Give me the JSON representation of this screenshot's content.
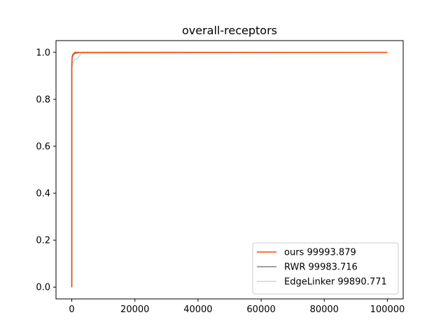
{
  "chart_data": {
    "type": "line",
    "title": "overall-receptors",
    "xlabel": "",
    "ylabel": "",
    "xlim": [
      -5000,
      105000
    ],
    "ylim": [
      -0.05,
      1.05
    ],
    "xticks": [
      0,
      20000,
      40000,
      60000,
      80000,
      100000
    ],
    "xtick_labels": [
      "0",
      "20000",
      "40000",
      "60000",
      "80000",
      "100000"
    ],
    "yticks": [
      0.0,
      0.2,
      0.4,
      0.6,
      0.8,
      1.0
    ],
    "ytick_labels": [
      "0.0",
      "0.2",
      "0.4",
      "0.6",
      "0.8",
      "1.0"
    ],
    "grid": false,
    "legend_position": "lower-right",
    "series": [
      {
        "name": "ours 99993.879",
        "color": "#ff4500",
        "x": [
          0,
          0,
          100,
          300,
          600,
          1000,
          100000
        ],
        "y": [
          0.0,
          0.95,
          0.98,
          0.99,
          0.995,
          1.0,
          1.0
        ]
      },
      {
        "name": "RWR 99983.716",
        "color": "#808080",
        "x": [
          0,
          0,
          100,
          200,
          500,
          1000,
          2500,
          100000
        ],
        "y": [
          0.0,
          0.94,
          0.97,
          0.98,
          0.99,
          0.995,
          1.0,
          1.0
        ]
      },
      {
        "name": "EdgeLinker 99890.771",
        "color": "#d3d3d3",
        "x": [
          0,
          0,
          200,
          500,
          1000,
          1800,
          2500,
          3000,
          100000
        ],
        "y": [
          0.0,
          0.93,
          0.95,
          0.96,
          0.97,
          0.975,
          0.985,
          0.997,
          1.0
        ]
      }
    ]
  }
}
